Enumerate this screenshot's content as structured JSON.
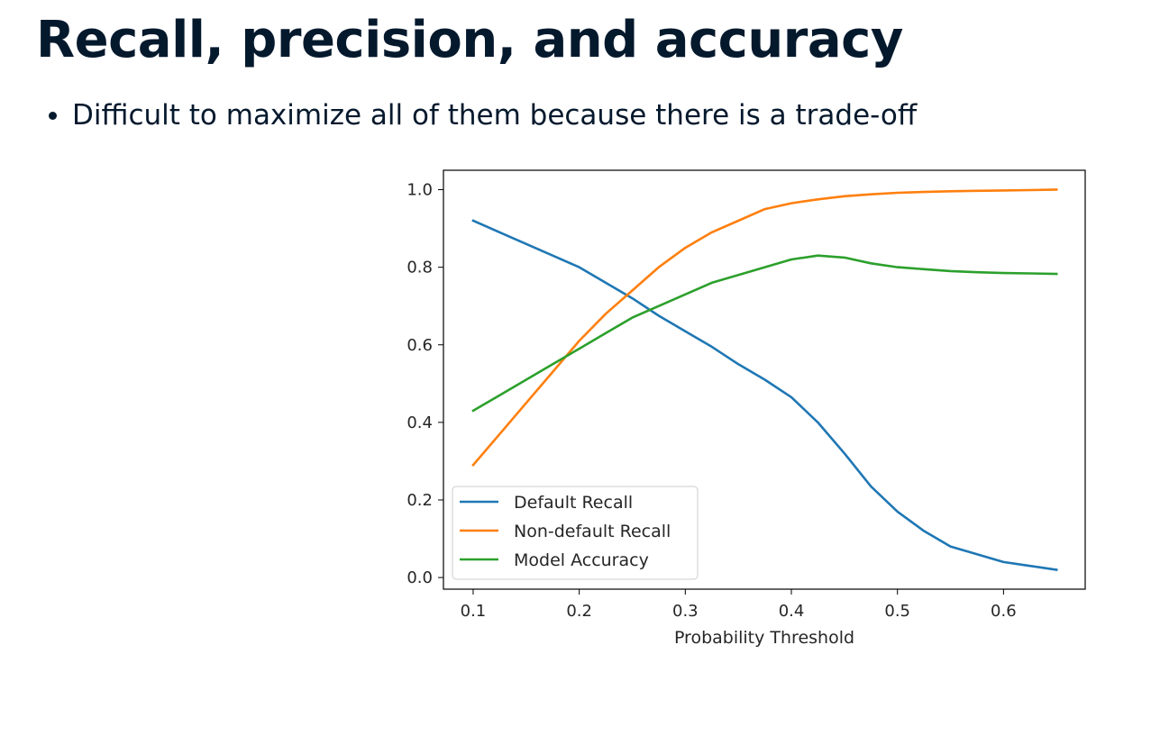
{
  "slide": {
    "title": "Recall, precision, and accuracy",
    "bullets": [
      "Difficult to maximize all of them because there is a trade-off"
    ]
  },
  "colors": {
    "text": "#05192d",
    "default_recall": "#1f77b4",
    "non_default_recall": "#ff7f0e",
    "model_accuracy": "#2ca02c"
  },
  "chart_data": {
    "type": "line",
    "title": "",
    "xlabel": "Probability Threshold",
    "ylabel": "",
    "xlim": [
      0.072,
      0.677
    ],
    "ylim": [
      -0.03,
      1.05
    ],
    "xticks": [
      0.1,
      0.2,
      0.3,
      0.4,
      0.5,
      0.6
    ],
    "xtick_labels": [
      "0.1",
      "0.2",
      "0.3",
      "0.4",
      "0.5",
      "0.6"
    ],
    "yticks": [
      0.0,
      0.2,
      0.4,
      0.6,
      0.8,
      1.0
    ],
    "ytick_labels": [
      "0.0",
      "0.2",
      "0.4",
      "0.6",
      "0.8",
      "1.0"
    ],
    "grid": false,
    "legend_position": "lower-left",
    "x": [
      0.1,
      0.125,
      0.15,
      0.175,
      0.2,
      0.225,
      0.25,
      0.275,
      0.3,
      0.325,
      0.35,
      0.375,
      0.4,
      0.425,
      0.45,
      0.475,
      0.5,
      0.525,
      0.55,
      0.575,
      0.6,
      0.625,
      0.65
    ],
    "series": [
      {
        "name": "Default Recall",
        "values": [
          0.92,
          0.89,
          0.86,
          0.83,
          0.8,
          0.76,
          0.72,
          0.675,
          0.635,
          0.595,
          0.55,
          0.51,
          0.465,
          0.4,
          0.32,
          0.235,
          0.17,
          0.12,
          0.08,
          0.06,
          0.04,
          0.03,
          0.02
        ]
      },
      {
        "name": "Non-default Recall",
        "values": [
          0.29,
          0.37,
          0.45,
          0.53,
          0.61,
          0.68,
          0.74,
          0.8,
          0.85,
          0.89,
          0.92,
          0.95,
          0.965,
          0.975,
          0.983,
          0.988,
          0.992,
          0.994,
          0.996,
          0.997,
          0.998,
          0.999,
          1.0
        ]
      },
      {
        "name": "Model Accuracy",
        "values": [
          0.43,
          0.47,
          0.51,
          0.55,
          0.59,
          0.63,
          0.67,
          0.7,
          0.73,
          0.76,
          0.78,
          0.8,
          0.82,
          0.83,
          0.825,
          0.81,
          0.8,
          0.795,
          0.79,
          0.787,
          0.785,
          0.784,
          0.783
        ]
      }
    ]
  }
}
